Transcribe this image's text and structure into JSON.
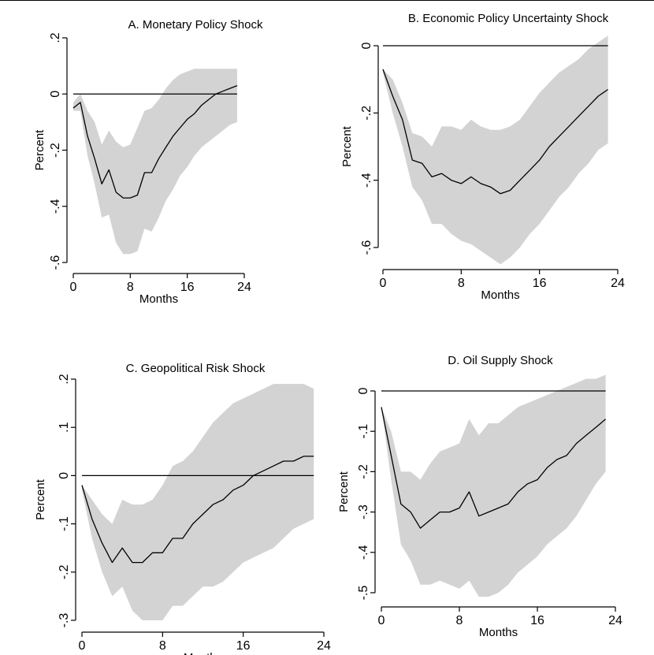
{
  "chart_data": [
    {
      "type": "line",
      "title": "A. Monetary Policy Shock",
      "xlabel": "Months",
      "ylabel": "Percent",
      "xlim": [
        0,
        24
      ],
      "ylim": [
        -0.6,
        0.2
      ],
      "xticks": [
        0,
        8,
        16,
        24
      ],
      "xtick_labels": [
        "0",
        "8",
        "16",
        "24"
      ],
      "yticks": [
        -0.6,
        -0.4,
        -0.2,
        0,
        0.2
      ],
      "ytick_labels": [
        "-.6",
        "-.4",
        "-.2",
        "0",
        ".2"
      ],
      "x": [
        0,
        1,
        2,
        3,
        4,
        5,
        6,
        7,
        8,
        9,
        10,
        11,
        12,
        13,
        14,
        15,
        16,
        17,
        18,
        19,
        20,
        21,
        22,
        23
      ],
      "series": [
        {
          "values": [
            -0.05,
            -0.03,
            -0.15,
            -0.23,
            -0.32,
            -0.27,
            -0.35,
            -0.37,
            -0.37,
            -0.36,
            -0.28,
            -0.28,
            -0.23,
            -0.19,
            -0.15,
            -0.12,
            -0.09,
            -0.07,
            -0.04,
            -0.02,
            0.0,
            0.01,
            0.02,
            0.03
          ]
        }
      ],
      "band_upper": [
        -0.03,
        0.0,
        -0.06,
        -0.1,
        -0.18,
        -0.13,
        -0.17,
        -0.19,
        -0.18,
        -0.12,
        -0.06,
        -0.05,
        -0.02,
        0.02,
        0.05,
        0.07,
        0.08,
        0.09,
        0.09,
        0.09,
        0.09,
        0.09,
        0.09,
        0.09
      ],
      "band_lower": [
        -0.06,
        -0.06,
        -0.22,
        -0.32,
        -0.44,
        -0.43,
        -0.53,
        -0.57,
        -0.57,
        -0.56,
        -0.48,
        -0.49,
        -0.44,
        -0.38,
        -0.34,
        -0.29,
        -0.26,
        -0.22,
        -0.19,
        -0.17,
        -0.15,
        -0.13,
        -0.11,
        -0.1
      ],
      "zero_line": true,
      "grid": false
    },
    {
      "type": "line",
      "title": "B. Economic Policy Uncertainty Shock",
      "xlabel": "Months",
      "ylabel": "Percent",
      "xlim": [
        0,
        24
      ],
      "ylim": [
        -0.6,
        0
      ],
      "xticks": [
        0,
        8,
        16,
        24
      ],
      "xtick_labels": [
        "0",
        "8",
        "16",
        "24"
      ],
      "yticks": [
        -0.6,
        -0.4,
        -0.2,
        0
      ],
      "ytick_labels": [
        "-.6",
        "-.4",
        "-.2",
        "0"
      ],
      "x": [
        0,
        1,
        2,
        3,
        4,
        5,
        6,
        7,
        8,
        9,
        10,
        11,
        12,
        13,
        14,
        15,
        16,
        17,
        18,
        19,
        20,
        21,
        22,
        23
      ],
      "series": [
        {
          "values": [
            -0.07,
            -0.15,
            -0.22,
            -0.34,
            -0.35,
            -0.39,
            -0.38,
            -0.4,
            -0.41,
            -0.39,
            -0.41,
            -0.42,
            -0.44,
            -0.43,
            -0.4,
            -0.37,
            -0.34,
            -0.3,
            -0.27,
            -0.24,
            -0.21,
            -0.18,
            -0.15,
            -0.13
          ]
        }
      ],
      "band_upper": [
        -0.07,
        -0.1,
        -0.17,
        -0.26,
        -0.27,
        -0.3,
        -0.24,
        -0.24,
        -0.25,
        -0.22,
        -0.24,
        -0.25,
        -0.25,
        -0.24,
        -0.22,
        -0.18,
        -0.14,
        -0.11,
        -0.08,
        -0.06,
        -0.04,
        -0.01,
        0.01,
        0.03
      ],
      "band_lower": [
        -0.08,
        -0.2,
        -0.3,
        -0.42,
        -0.46,
        -0.53,
        -0.53,
        -0.56,
        -0.58,
        -0.59,
        -0.61,
        -0.63,
        -0.65,
        -0.63,
        -0.6,
        -0.56,
        -0.53,
        -0.49,
        -0.45,
        -0.42,
        -0.38,
        -0.35,
        -0.31,
        -0.29
      ],
      "zero_line": true,
      "grid": false
    },
    {
      "type": "line",
      "title": "C. Geopolitical Risk Shock",
      "xlabel": "Months",
      "ylabel": "Percent",
      "xlim": [
        0,
        24
      ],
      "ylim": [
        -0.3,
        0.2
      ],
      "xticks": [
        0,
        8,
        16,
        24
      ],
      "xtick_labels": [
        "0",
        "8",
        "16",
        "24"
      ],
      "yticks": [
        -0.3,
        -0.2,
        -0.1,
        0,
        0.1,
        0.2
      ],
      "ytick_labels": [
        "-.3",
        "-.2",
        "-.1",
        "0",
        ".1",
        ".2"
      ],
      "x": [
        0,
        1,
        2,
        3,
        4,
        5,
        6,
        7,
        8,
        9,
        10,
        11,
        12,
        13,
        14,
        15,
        16,
        17,
        18,
        19,
        20,
        21,
        22,
        23
      ],
      "series": [
        {
          "values": [
            -0.02,
            -0.09,
            -0.14,
            -0.18,
            -0.15,
            -0.18,
            -0.18,
            -0.16,
            -0.16,
            -0.13,
            -0.13,
            -0.1,
            -0.08,
            -0.06,
            -0.05,
            -0.03,
            -0.02,
            0.0,
            0.01,
            0.02,
            0.03,
            0.03,
            0.04,
            0.04
          ]
        }
      ],
      "band_upper": [
        -0.02,
        -0.05,
        -0.08,
        -0.1,
        -0.05,
        -0.06,
        -0.06,
        -0.05,
        -0.02,
        0.02,
        0.03,
        0.05,
        0.08,
        0.11,
        0.13,
        0.15,
        0.16,
        0.17,
        0.18,
        0.19,
        0.19,
        0.19,
        0.19,
        0.18
      ],
      "band_lower": [
        -0.03,
        -0.13,
        -0.2,
        -0.25,
        -0.23,
        -0.28,
        -0.3,
        -0.3,
        -0.3,
        -0.27,
        -0.27,
        -0.25,
        -0.23,
        -0.23,
        -0.22,
        -0.2,
        -0.18,
        -0.17,
        -0.16,
        -0.15,
        -0.13,
        -0.11,
        -0.1,
        -0.09
      ],
      "zero_line": true,
      "grid": false
    },
    {
      "type": "line",
      "title": "D. Oil Supply Shock",
      "xlabel": "Months",
      "ylabel": "Percent",
      "xlim": [
        0,
        24
      ],
      "ylim": [
        -0.5,
        0
      ],
      "xticks": [
        0,
        8,
        16,
        24
      ],
      "xtick_labels": [
        "0",
        "8",
        "16",
        "24"
      ],
      "yticks": [
        -0.5,
        -0.4,
        -0.3,
        -0.2,
        -0.1,
        0
      ],
      "ytick_labels": [
        "-.5",
        "-.4",
        "-.3",
        "-.2",
        "-.1",
        "0"
      ],
      "x": [
        0,
        1,
        2,
        3,
        4,
        5,
        6,
        7,
        8,
        9,
        10,
        11,
        12,
        13,
        14,
        15,
        16,
        17,
        18,
        19,
        20,
        21,
        22,
        23
      ],
      "series": [
        {
          "values": [
            -0.04,
            -0.16,
            -0.28,
            -0.3,
            -0.34,
            -0.32,
            -0.3,
            -0.3,
            -0.29,
            -0.25,
            -0.31,
            -0.3,
            -0.29,
            -0.28,
            -0.25,
            -0.23,
            -0.22,
            -0.19,
            -0.17,
            -0.16,
            -0.13,
            -0.11,
            -0.09,
            -0.07
          ]
        }
      ],
      "band_upper": [
        -0.04,
        -0.1,
        -0.2,
        -0.2,
        -0.22,
        -0.18,
        -0.15,
        -0.14,
        -0.13,
        -0.07,
        -0.11,
        -0.08,
        -0.08,
        -0.06,
        -0.04,
        -0.03,
        -0.02,
        -0.01,
        0.0,
        0.01,
        0.02,
        0.03,
        0.03,
        0.04
      ],
      "band_lower": [
        -0.04,
        -0.22,
        -0.38,
        -0.42,
        -0.48,
        -0.48,
        -0.47,
        -0.48,
        -0.49,
        -0.47,
        -0.51,
        -0.51,
        -0.5,
        -0.48,
        -0.45,
        -0.43,
        -0.41,
        -0.38,
        -0.36,
        -0.34,
        -0.31,
        -0.27,
        -0.23,
        -0.2
      ],
      "zero_line": true,
      "grid": false
    }
  ]
}
